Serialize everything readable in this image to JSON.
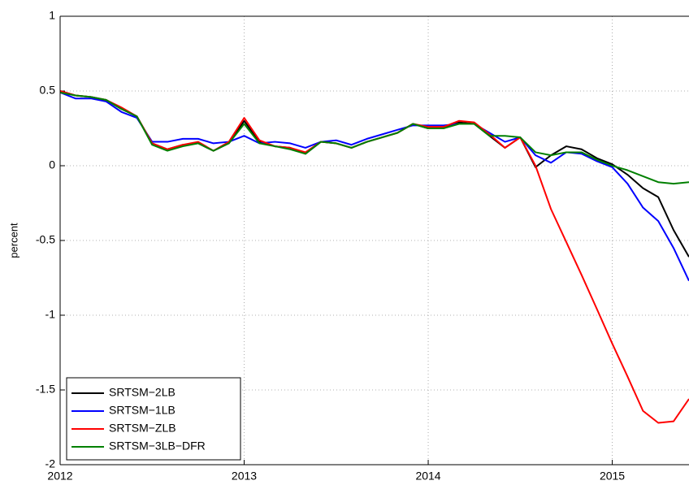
{
  "chart_data": {
    "type": "line",
    "y_label": "percent",
    "x": [
      2012,
      2012.083,
      2012.167,
      2012.25,
      2012.333,
      2012.417,
      2012.5,
      2012.583,
      2012.667,
      2012.75,
      2012.833,
      2012.917,
      2013,
      2013.083,
      2013.167,
      2013.25,
      2013.333,
      2013.417,
      2013.5,
      2013.583,
      2013.667,
      2013.75,
      2013.833,
      2013.917,
      2014,
      2014.083,
      2014.167,
      2014.25,
      2014.333,
      2014.417,
      2014.5,
      2014.583,
      2014.667,
      2014.75,
      2014.833,
      2014.917,
      2015,
      2015.083,
      2015.167,
      2015.25,
      2015.333,
      2015.417
    ],
    "series": [
      {
        "name": "SRTSM−2LB",
        "color": "#000000",
        "values": [
          0.5,
          0.47,
          0.46,
          0.44,
          0.38,
          0.33,
          0.15,
          0.11,
          0.14,
          0.15,
          0.1,
          0.15,
          0.3,
          0.16,
          0.13,
          0.12,
          0.08,
          0.16,
          0.15,
          0.12,
          0.16,
          0.19,
          0.22,
          0.28,
          0.25,
          0.26,
          0.29,
          0.28,
          0.2,
          0.12,
          0.19,
          -0.01,
          0.07,
          0.13,
          0.11,
          0.05,
          0.01,
          -0.06,
          -0.15,
          -0.21,
          -0.43,
          -0.61
        ]
      },
      {
        "name": "SRTSM−1LB",
        "color": "#0000ff",
        "values": [
          0.49,
          0.45,
          0.45,
          0.43,
          0.36,
          0.32,
          0.16,
          0.16,
          0.18,
          0.18,
          0.15,
          0.16,
          0.2,
          0.15,
          0.16,
          0.15,
          0.12,
          0.16,
          0.17,
          0.14,
          0.18,
          0.21,
          0.24,
          0.27,
          0.27,
          0.27,
          0.28,
          0.28,
          0.22,
          0.16,
          0.19,
          0.07,
          0.02,
          0.09,
          0.08,
          0.03,
          -0.01,
          -0.12,
          -0.28,
          -0.37,
          -0.55,
          -0.77
        ]
      },
      {
        "name": "SRTSM−ZLB",
        "color": "#ff0000",
        "values": [
          0.5,
          0.47,
          0.46,
          0.44,
          0.39,
          0.33,
          0.15,
          0.11,
          0.14,
          0.16,
          0.1,
          0.16,
          0.32,
          0.17,
          0.13,
          0.12,
          0.09,
          0.16,
          0.15,
          0.12,
          0.16,
          0.19,
          0.22,
          0.28,
          0.26,
          0.26,
          0.3,
          0.29,
          0.21,
          0.12,
          0.19,
          0.0,
          -0.29,
          -0.51,
          -0.73,
          -0.96,
          -1.19,
          -1.41,
          -1.64,
          -1.72,
          -1.71,
          -1.56
        ]
      },
      {
        "name": "SRTSM−3LB−DFR",
        "color": "#008000",
        "values": [
          0.49,
          0.47,
          0.46,
          0.44,
          0.38,
          0.33,
          0.14,
          0.1,
          0.13,
          0.15,
          0.1,
          0.15,
          0.28,
          0.15,
          0.13,
          0.11,
          0.08,
          0.16,
          0.15,
          0.12,
          0.16,
          0.19,
          0.22,
          0.28,
          0.25,
          0.25,
          0.28,
          0.28,
          0.2,
          0.2,
          0.19,
          0.09,
          0.07,
          0.09,
          0.09,
          0.04,
          0.0,
          -0.03,
          -0.07,
          -0.11,
          -0.12,
          -0.11
        ]
      }
    ],
    "xlim": [
      2012,
      2015.417
    ],
    "xticks": [
      2012,
      2013,
      2014,
      2015
    ],
    "ylim": [
      -2,
      1
    ],
    "yticks": [
      -2,
      -1.5,
      -1,
      -0.5,
      0,
      0.5,
      1
    ],
    "grid": true,
    "legend_position": "lower-left"
  }
}
